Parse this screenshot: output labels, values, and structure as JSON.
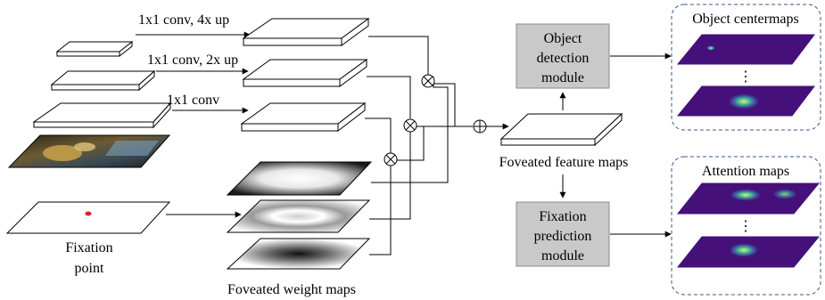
{
  "labels": {
    "conv_4x": "1x1 conv, 4x up",
    "conv_2x": "1x1 conv, 2x up",
    "conv_1x": "1x1 conv",
    "fixation_point_1": "Fixation",
    "fixation_point_2": "point",
    "foveated_weight_maps": "Foveated weight maps",
    "foveated_feature_maps": "Foveated feature maps",
    "object_centermaps": "Object centermaps",
    "attention_maps": "Attention maps",
    "ellipsis": "⋮"
  },
  "modules": {
    "object_detection": [
      "Object",
      "detection",
      "module"
    ],
    "fixation_prediction": [
      "Fixation",
      "prediction",
      "module"
    ]
  },
  "operators": {
    "multiply": "⊗",
    "add": "⊕"
  },
  "colors": {
    "module_fill": "#c9c9c9",
    "module_stroke": "#8a8a8a",
    "panel_border": "#3a5a8c",
    "fixation_dot": "#e0202a",
    "heatmap_base": "#46107a",
    "heatmap_mid": "#2e8f8c",
    "heatmap_hot": "#f3e94a"
  }
}
